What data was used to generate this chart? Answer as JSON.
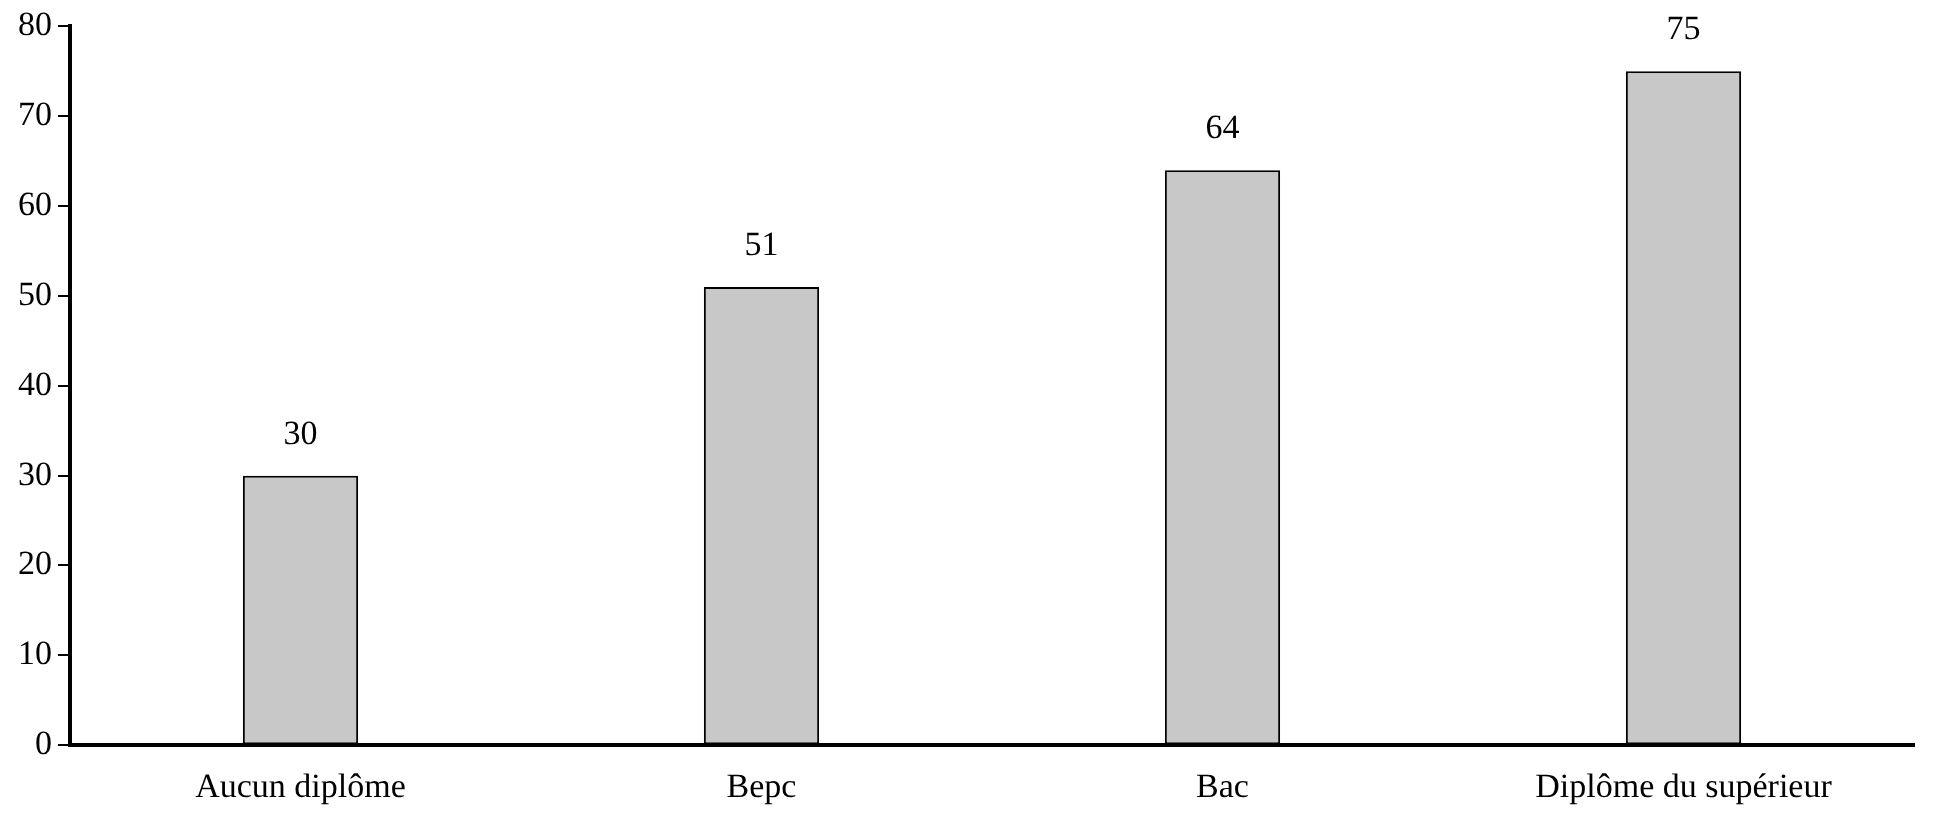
{
  "chart_data": {
    "type": "bar",
    "categories": [
      "Aucun diplôme",
      "Bepc",
      "Bac",
      "Diplôme du supérieur"
    ],
    "values": [
      30,
      51,
      64,
      75
    ],
    "color": "#c8c8c8",
    "ylim": [
      0,
      80
    ],
    "yticks": [
      0,
      10,
      20,
      30,
      40,
      50,
      60,
      70,
      80
    ],
    "grid": false,
    "legend": false,
    "data_labels": true
  }
}
